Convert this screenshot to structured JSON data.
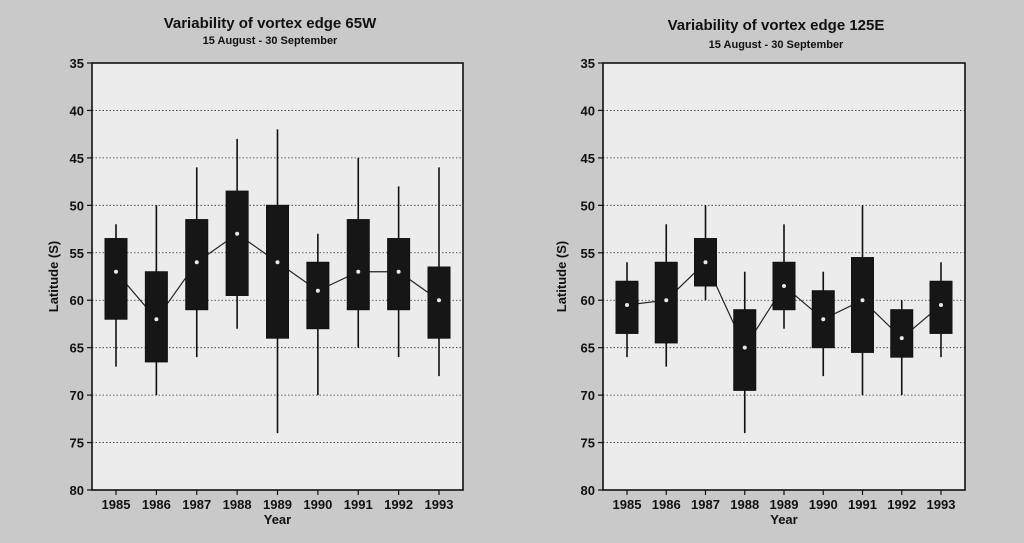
{
  "chart_data": [
    {
      "type": "box",
      "title": "Variability of vortex edge   65W",
      "subtitle": "15 August - 30 September",
      "xlabel": "Year",
      "ylabel": "Latitude (S)",
      "ylim": [
        35,
        80
      ],
      "y_inverted": true,
      "yticks": [
        35,
        40,
        45,
        50,
        55,
        60,
        65,
        70,
        75,
        80
      ],
      "categories": [
        "1985",
        "1986",
        "1987",
        "1988",
        "1989",
        "1990",
        "1991",
        "1992",
        "1993"
      ],
      "boxes": [
        {
          "x": "1985",
          "whisker_low": 52,
          "q1": 53.5,
          "median": 57,
          "q3": 62,
          "whisker_high": 67
        },
        {
          "x": "1986",
          "whisker_low": 50,
          "q1": 57,
          "median": 62,
          "q3": 66.5,
          "whisker_high": 70
        },
        {
          "x": "1987",
          "whisker_low": 46,
          "q1": 51.5,
          "median": 56,
          "q3": 61,
          "whisker_high": 66
        },
        {
          "x": "1988",
          "whisker_low": 43,
          "q1": 48.5,
          "median": 53,
          "q3": 59.5,
          "whisker_high": 63
        },
        {
          "x": "1989",
          "whisker_low": 42,
          "q1": 50,
          "median": 56,
          "q3": 64,
          "whisker_high": 74
        },
        {
          "x": "1990",
          "whisker_low": 53,
          "q1": 56,
          "median": 59,
          "q3": 63,
          "whisker_high": 70
        },
        {
          "x": "1991",
          "whisker_low": 45,
          "q1": 51.5,
          "median": 57,
          "q3": 61,
          "whisker_high": 65
        },
        {
          "x": "1992",
          "whisker_low": 48,
          "q1": 53.5,
          "median": 57,
          "q3": 61,
          "whisker_high": 66
        },
        {
          "x": "1993",
          "whisker_low": 46,
          "q1": 56.5,
          "median": 60,
          "q3": 64,
          "whisker_high": 68
        }
      ],
      "grid": "horizontal dotted"
    },
    {
      "type": "box",
      "title": "Variability of vortex edge   125E",
      "subtitle": "15 August - 30 September",
      "xlabel": "Year",
      "ylabel": "Latitude (S)",
      "ylim": [
        35,
        80
      ],
      "y_inverted": true,
      "yticks": [
        35,
        40,
        45,
        50,
        55,
        60,
        65,
        70,
        75,
        80
      ],
      "categories": [
        "1985",
        "1986",
        "1987",
        "1988",
        "1989",
        "1990",
        "1991",
        "1992",
        "1993"
      ],
      "boxes": [
        {
          "x": "1985",
          "whisker_low": 56,
          "q1": 58,
          "median": 60.5,
          "q3": 63.5,
          "whisker_high": 66
        },
        {
          "x": "1986",
          "whisker_low": 52,
          "q1": 56,
          "median": 60,
          "q3": 64.5,
          "whisker_high": 67
        },
        {
          "x": "1987",
          "whisker_low": 50,
          "q1": 53.5,
          "median": 56,
          "q3": 58.5,
          "whisker_high": 60
        },
        {
          "x": "1988",
          "whisker_low": 57,
          "q1": 61,
          "median": 65,
          "q3": 69.5,
          "whisker_high": 74
        },
        {
          "x": "1989",
          "whisker_low": 52,
          "q1": 56,
          "median": 58.5,
          "q3": 61,
          "whisker_high": 63
        },
        {
          "x": "1990",
          "whisker_low": 57,
          "q1": 59,
          "median": 62,
          "q3": 65,
          "whisker_high": 68
        },
        {
          "x": "1991",
          "whisker_low": 50,
          "q1": 55.5,
          "median": 60,
          "q3": 65.5,
          "whisker_high": 70
        },
        {
          "x": "1992",
          "whisker_low": 60,
          "q1": 61,
          "median": 64,
          "q3": 66,
          "whisker_high": 70
        },
        {
          "x": "1993",
          "whisker_low": 56,
          "q1": 58,
          "median": 60.5,
          "q3": 63.5,
          "whisker_high": 66
        }
      ],
      "grid": "horizontal dotted"
    }
  ]
}
